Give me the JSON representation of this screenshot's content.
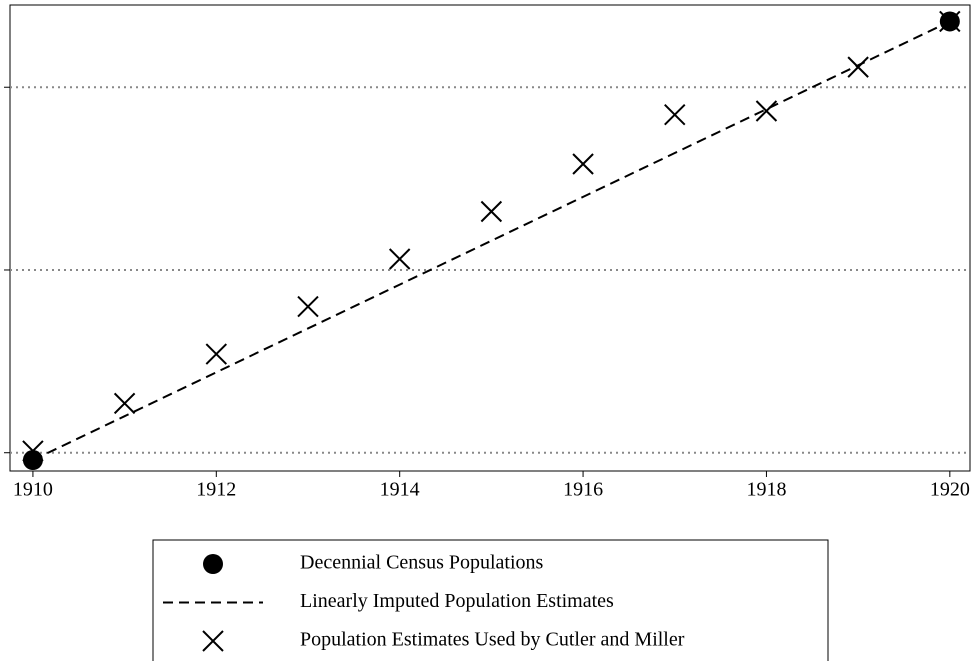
{
  "chart_data": {
    "type": "line",
    "x": [
      1910,
      1911,
      1912,
      1913,
      1914,
      1915,
      1916,
      1917,
      1918,
      1919,
      1920
    ],
    "series": [
      {
        "name": "Decennial Census Populations",
        "color": "#000000",
        "marker": "circle",
        "linestyle": "none",
        "values": [
          -0.04,
          null,
          null,
          null,
          null,
          null,
          null,
          null,
          null,
          null,
          2.36
        ]
      },
      {
        "name": "Linearly Imputed Population Estimates",
        "color": "#000000",
        "marker": "none",
        "linestyle": "dashed",
        "values": [
          -0.04,
          0.2,
          0.44,
          0.68,
          0.92,
          1.16,
          1.4,
          1.64,
          1.88,
          2.12,
          2.36
        ]
      },
      {
        "name": "Population Estimates Used by Cutler and Miller",
        "color": "#000000",
        "marker": "x",
        "linestyle": "none",
        "values": [
          0.01,
          0.27,
          0.54,
          0.8,
          1.06,
          1.32,
          1.58,
          1.85,
          1.87,
          2.11,
          2.36
        ]
      }
    ],
    "xlim": [
      1909.75,
      1920.22
    ],
    "xticks": [
      1910,
      1912,
      1914,
      1916,
      1918,
      1920
    ],
    "ylim": [
      -0.1,
      2.45
    ],
    "yticks": [
      0,
      1,
      2
    ],
    "grid": true,
    "legend": "bottom"
  }
}
